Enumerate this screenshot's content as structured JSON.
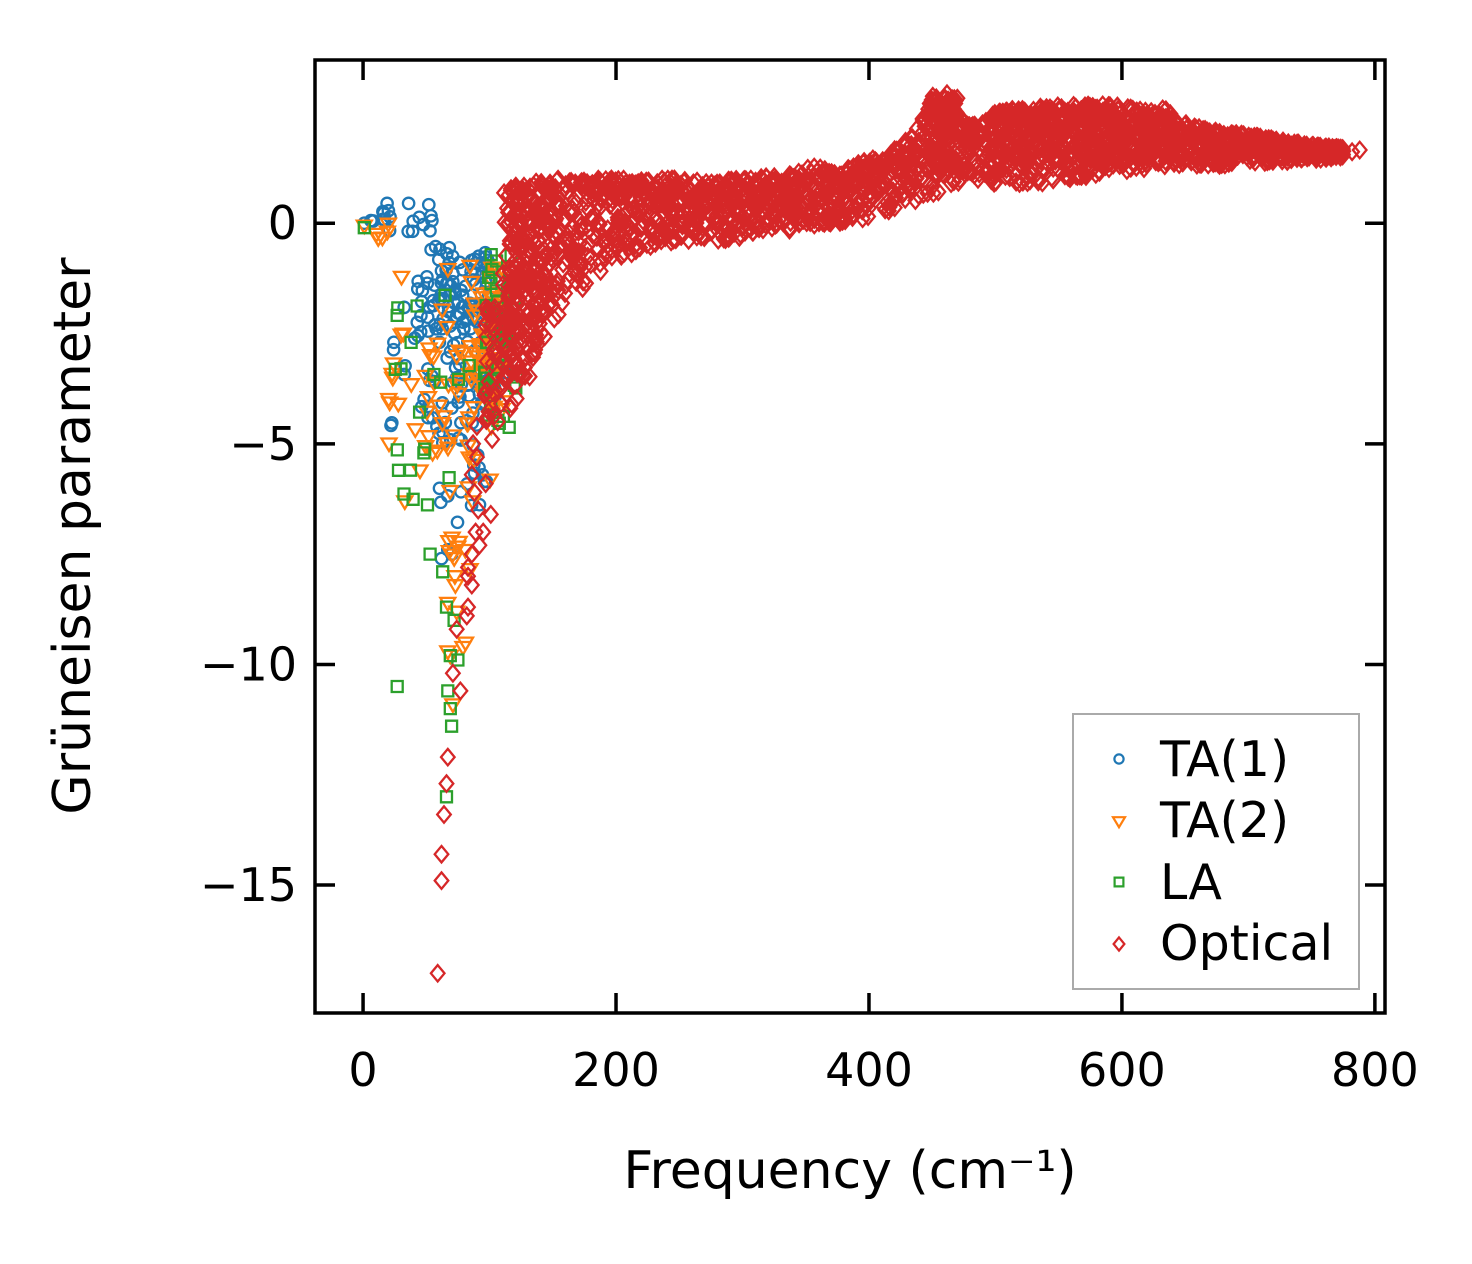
{
  "chart_data": {
    "type": "scatter",
    "title": "",
    "xlabel": "Frequency (cm⁻¹)",
    "ylabel": "Grüneisen parameter",
    "axes": {
      "xlim": [
        -38,
        808
      ],
      "ylim": [
        -17.9,
        3.7
      ],
      "xticks": [
        0,
        200,
        400,
        600,
        800
      ],
      "xticklabels": [
        "0",
        "200",
        "400",
        "600",
        "800"
      ],
      "yticks": [
        0,
        -5,
        -10,
        -15
      ],
      "yticklabels": [
        "0",
        "−5",
        "−10",
        "−15"
      ],
      "spine_color": "#000000",
      "grid": false
    },
    "legend": {
      "position": "lower right",
      "border_color": "#aaaaaa"
    },
    "series": [
      {
        "name": "TA(1)",
        "marker": "circle",
        "color": "#1f77b4",
        "data": {
          "points": [
            [
              1,
              0
            ],
            [
              8,
              0.05
            ],
            [
              19,
              0.45
            ],
            [
              36,
              0.45
            ],
            [
              52,
              0.42
            ],
            [
              62,
              -7.6
            ],
            [
              67,
              -7.4
            ],
            [
              70,
              -7.5
            ]
          ],
          "clusters": [
            {
              "n": 16,
              "x": [
                6,
                62
              ],
              "y": [
                -0.2,
                0.35
              ]
            },
            {
              "n": 60,
              "x": [
                52,
                100
              ],
              "y": [
                -0.5,
                -2.4
              ]
            },
            {
              "n": 70,
              "x": [
                42,
                105
              ],
              "y": [
                -1.2,
                -4.6
              ]
            },
            {
              "n": 45,
              "x": [
                86,
                113
              ],
              "y": [
                -0.7,
                -4.2
              ]
            },
            {
              "n": 26,
              "x": [
                52,
                98
              ],
              "y": [
                -4.4,
                -6.9
              ]
            },
            {
              "n": 10,
              "x": [
                18,
                48
              ],
              "y": [
                -1.0,
                -4.6
              ]
            }
          ]
        }
      },
      {
        "name": "TA(2)",
        "marker": "triangle-down",
        "color": "#ff7f0e",
        "data": {
          "points": [
            [
              1,
              -0.05
            ],
            [
              33,
              -6.3
            ],
            [
              45,
              -5.6
            ],
            [
              55,
              -5.2
            ],
            [
              73,
              -8.2
            ],
            [
              67,
              -8.6
            ],
            [
              74,
              -8.8
            ],
            [
              81,
              -9.5
            ],
            [
              67,
              -9.7
            ],
            [
              79,
              -9.6
            ],
            [
              69,
              -9.8
            ],
            [
              71,
              -10.9
            ]
          ],
          "clusters": [
            {
              "n": 6,
              "x": [
                2,
                22
              ],
              "y": [
                -0.35,
                0.1
              ]
            },
            {
              "n": 34,
              "x": [
                20,
                85
              ],
              "y": [
                -0.8,
                -5.4
              ]
            },
            {
              "n": 65,
              "x": [
                84,
                112
              ],
              "y": [
                -1.0,
                -4.4
              ]
            },
            {
              "n": 26,
              "x": [
                58,
                106
              ],
              "y": [
                -2.2,
                -6.4
              ]
            },
            {
              "n": 10,
              "x": [
                62,
                88
              ],
              "y": [
                -6.6,
                -8.0
              ]
            }
          ]
        }
      },
      {
        "name": "LA",
        "marker": "square",
        "color": "#2ca02c",
        "data": {
          "points": [
            [
              1,
              -0.1
            ],
            [
              30,
              -3.3
            ],
            [
              28,
              -5.6
            ],
            [
              38,
              -2.7
            ],
            [
              53,
              -7.5
            ],
            [
              63,
              -7.9
            ],
            [
              66,
              -8.7
            ],
            [
              72,
              -9.0
            ],
            [
              75,
              -9.9
            ],
            [
              69,
              -9.8
            ],
            [
              27,
              -10.5
            ],
            [
              67,
              -10.6
            ],
            [
              69,
              -11.0
            ],
            [
              70,
              -11.4
            ],
            [
              66,
              -13.0
            ]
          ],
          "clusters": [
            {
              "n": 18,
              "x": [
                24,
                95
              ],
              "y": [
                -1.3,
                -6.4
              ]
            },
            {
              "n": 40,
              "x": [
                96,
                122
              ],
              "y": [
                -0.6,
                -3.9
              ]
            },
            {
              "n": 6,
              "x": [
                98,
                118
              ],
              "y": [
                -3.6,
                -4.8
              ]
            }
          ]
        }
      },
      {
        "name": "Optical",
        "marker": "diamond",
        "color": "#d62728",
        "data": {
          "points": [
            [
              96,
              -3.9
            ],
            [
              99,
              -4.4
            ],
            [
              102,
              -4.9
            ],
            [
              97,
              -5.9
            ],
            [
              101,
              -6.6
            ],
            [
              95,
              -7.0
            ],
            [
              90,
              -4.6
            ],
            [
              87,
              -5.0
            ],
            [
              90,
              -5.3
            ],
            [
              86,
              -5.7
            ],
            [
              88,
              -6.1
            ],
            [
              91,
              -6.5
            ],
            [
              89,
              -7.0
            ],
            [
              92,
              -7.3
            ],
            [
              86,
              -7.5
            ],
            [
              83,
              -7.8
            ],
            [
              83,
              -8.0
            ],
            [
              86,
              -8.2
            ],
            [
              83,
              -8.7
            ],
            [
              82,
              -8.9
            ],
            [
              74,
              -9.2
            ],
            [
              71,
              -10.2
            ],
            [
              77,
              -10.6
            ],
            [
              67,
              -12.1
            ],
            [
              66,
              -12.7
            ],
            [
              64,
              -13.4
            ],
            [
              62,
              -14.3
            ],
            [
              62,
              -14.9
            ],
            [
              59,
              -17.0
            ],
            [
              612,
              2.05
            ],
            [
              618,
              1.8
            ],
            [
              624,
              1.55
            ],
            [
              630,
              1.4
            ],
            [
              616,
              1.33
            ],
            [
              638,
              1.95
            ],
            [
              645,
              1.62
            ],
            [
              782,
              1.62
            ],
            [
              788,
              1.66
            ]
          ],
          "clusters": [
            {
              "n": 130,
              "x": [
                109,
                150
              ],
              "y": [
                -2.3,
                0.85
              ]
            },
            {
              "n": 70,
              "x": [
                109,
                138
              ],
              "y": [
                -3.6,
                -0.8
              ]
            },
            {
              "n": 45,
              "x": [
                96,
                114
              ],
              "y": [
                -1.8,
                -4.5
              ]
            },
            {
              "n": 80,
              "x": [
                448,
                470
              ],
              "y": [
                1.1,
                2.9
              ]
            },
            {
              "n": 220,
              "x": [
                502,
                640
              ],
              "y": [
                1.35,
                2.6
              ]
            }
          ],
          "band": {
            "density_per_unit": 3.2,
            "top_bias": 1.35,
            "knots": [
              [
                112,
                -4.6,
                0.75
              ],
              [
                120,
                -4.2,
                0.85
              ],
              [
                130,
                -3.4,
                0.9
              ],
              [
                140,
                -2.8,
                0.95
              ],
              [
                150,
                -2.3,
                1.0
              ],
              [
                165,
                -1.75,
                1.0
              ],
              [
                180,
                -1.3,
                1.0
              ],
              [
                200,
                -0.85,
                1.0
              ],
              [
                220,
                -0.6,
                1.0
              ],
              [
                250,
                -0.45,
                1.0
              ],
              [
                280,
                -0.45,
                0.95
              ],
              [
                310,
                -0.3,
                1.05
              ],
              [
                340,
                -0.15,
                1.1
              ],
              [
                355,
                -0.05,
                1.35
              ],
              [
                375,
                0.0,
                1.15
              ],
              [
                395,
                0.1,
                1.4
              ],
              [
                415,
                0.25,
                1.55
              ],
              [
                435,
                0.45,
                2.0
              ],
              [
                450,
                0.6,
                2.75
              ],
              [
                462,
                0.8,
                2.95
              ],
              [
                472,
                0.9,
                2.4
              ],
              [
                485,
                0.95,
                2.2
              ],
              [
                500,
                0.9,
                2.5
              ],
              [
                520,
                0.8,
                2.6
              ],
              [
                545,
                0.95,
                2.65
              ],
              [
                575,
                1.05,
                2.7
              ],
              [
                600,
                1.15,
                2.65
              ],
              [
                625,
                1.25,
                2.5
              ],
              [
                645,
                1.3,
                2.3
              ],
              [
                670,
                1.3,
                2.1
              ],
              [
                700,
                1.35,
                2.0
              ],
              [
                730,
                1.4,
                1.85
              ],
              [
                755,
                1.45,
                1.75
              ],
              [
                775,
                1.5,
                1.7
              ]
            ]
          }
        }
      }
    ]
  }
}
